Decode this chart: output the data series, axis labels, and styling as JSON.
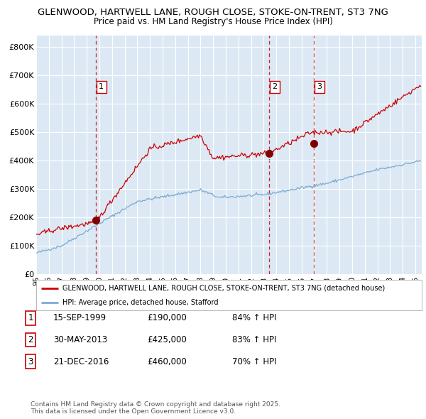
{
  "title_line1": "GLENWOOD, HARTWELL LANE, ROUGH CLOSE, STOKE-ON-TRENT, ST3 7NG",
  "title_line2": "Price paid vs. HM Land Registry's House Price Index (HPI)",
  "background_color": "#dce9f5",
  "fig_bg_color": "#ffffff",
  "red_line_color": "#cc0000",
  "blue_line_color": "#7aabcf",
  "sale_marker_color": "#800000",
  "vline_color": "#cc0000",
  "ylim": [
    0,
    840000
  ],
  "yticks": [
    0,
    100000,
    200000,
    300000,
    400000,
    500000,
    600000,
    700000,
    800000
  ],
  "ytick_labels": [
    "£0",
    "£100K",
    "£200K",
    "£300K",
    "£400K",
    "£500K",
    "£600K",
    "£700K",
    "£800K"
  ],
  "xmin_year": 1995.0,
  "xmax_year": 2025.5,
  "xticks": [
    1995,
    1996,
    1997,
    1998,
    1999,
    2000,
    2001,
    2002,
    2003,
    2004,
    2005,
    2006,
    2007,
    2008,
    2009,
    2010,
    2011,
    2012,
    2013,
    2014,
    2015,
    2016,
    2017,
    2018,
    2019,
    2020,
    2021,
    2022,
    2023,
    2024,
    2025
  ],
  "sale1_x": 1999.708,
  "sale1_y": 190000,
  "sale1_label": "1",
  "sale2_x": 2013.41,
  "sale2_y": 425000,
  "sale2_label": "2",
  "sale3_x": 2016.97,
  "sale3_y": 460000,
  "sale3_label": "3",
  "legend_line1": "GLENWOOD, HARTWELL LANE, ROUGH CLOSE, STOKE-ON-TRENT, ST3 7NG (detached house)",
  "legend_line2": "HPI: Average price, detached house, Stafford",
  "table_rows": [
    {
      "num": "1",
      "date": "15-SEP-1999",
      "price": "£190,000",
      "change": "84% ↑ HPI"
    },
    {
      "num": "2",
      "date": "30-MAY-2013",
      "price": "£425,000",
      "change": "83% ↑ HPI"
    },
    {
      "num": "3",
      "date": "21-DEC-2016",
      "price": "£460,000",
      "change": "70% ↑ HPI"
    }
  ],
  "footer": "Contains HM Land Registry data © Crown copyright and database right 2025.\nThis data is licensed under the Open Government Licence v3.0."
}
